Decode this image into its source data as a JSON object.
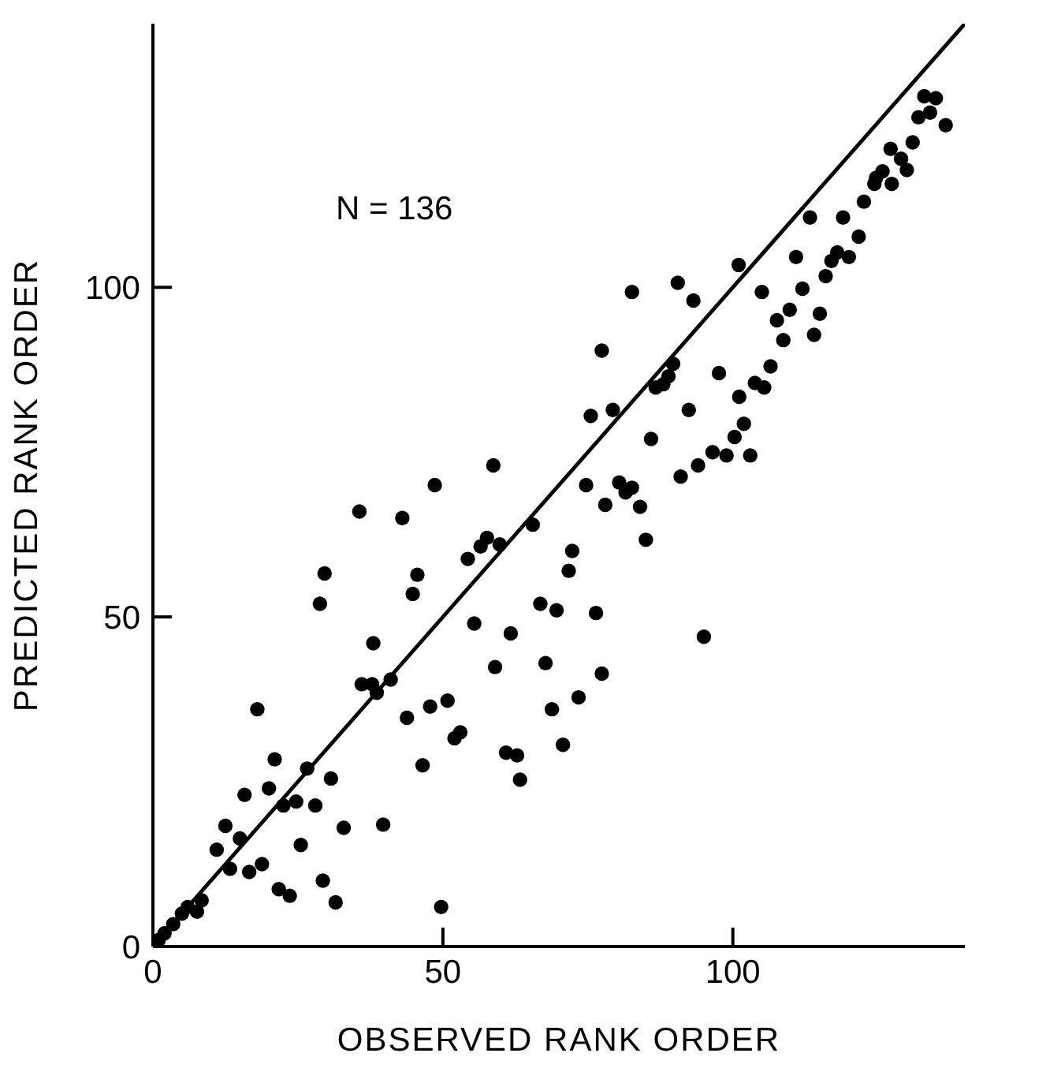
{
  "chart_data": {
    "type": "scatter",
    "xlabel": "OBSERVED RANK ORDER",
    "ylabel": "PREDICTED RANK ORDER",
    "annotations": [
      "N = 136"
    ],
    "xlim": [
      0,
      140
    ],
    "ylim": [
      0,
      140
    ],
    "xticks": [
      0,
      50,
      100
    ],
    "yticks": [
      0,
      50,
      100
    ],
    "grid": false,
    "series": [
      {
        "marker": "circle",
        "color": "#000000",
        "x": [
          1,
          2,
          3.5,
          5,
          6,
          7.6,
          8.4,
          11,
          12.5,
          13.3,
          15,
          15.8,
          16.6,
          18,
          18.8,
          20,
          21,
          21.7,
          22.5,
          23.6,
          24.7,
          25.5,
          26.6,
          28,
          28.8,
          29.6,
          29.3,
          30.7,
          31.5,
          32.9,
          35.6,
          36,
          37.8,
          38,
          38.6,
          39.7,
          41,
          43,
          43.8,
          44.8,
          45.6,
          46.5,
          47.8,
          48.6,
          49.7,
          50.8,
          52,
          53,
          54.3,
          55.4,
          56.5,
          57.6,
          58.7,
          59,
          59.8,
          60.9,
          61.7,
          62.8,
          63.3,
          65.5,
          66.8,
          67.7,
          68.8,
          69.6,
          70.7,
          71.7,
          72.3,
          73.4,
          74.7,
          75.5,
          76.4,
          77.4,
          77.4,
          78,
          79.3,
          80.4,
          81.5,
          82.6,
          82.6,
          84,
          85,
          85.9,
          86.7,
          88,
          88.9,
          89.7,
          90.5,
          91,
          92.4,
          93.2,
          94,
          95,
          96.5,
          97.6,
          98.9,
          100.3,
          101.1,
          101.9,
          103,
          103.8,
          105.4,
          101,
          105,
          106.5,
          107.6,
          108.7,
          109.8,
          110.9,
          112,
          113.3,
          114,
          115,
          116,
          117,
          118,
          119,
          120,
          121.7,
          122.6,
          124.4,
          124.7,
          125.8,
          127.2,
          127.4,
          129,
          130,
          131,
          132,
          133,
          134,
          135,
          136.7
        ],
        "values": [
          1,
          2,
          3.4,
          5,
          6,
          5.3,
          7,
          14.7,
          18.3,
          11.8,
          16.4,
          23,
          11.3,
          36,
          12.5,
          24,
          28.4,
          8.7,
          21.4,
          7.7,
          22,
          15.4,
          27,
          21.4,
          52,
          56.6,
          10,
          25.5,
          6.7,
          18,
          66,
          39.8,
          39.8,
          46,
          38.5,
          18.5,
          40.5,
          65,
          34.7,
          53.5,
          56.4,
          27.5,
          36.4,
          70,
          6,
          37.3,
          31.6,
          32.5,
          58.8,
          49,
          60.7,
          62,
          73,
          42.4,
          61,
          29.4,
          47.5,
          29,
          25.3,
          64,
          52,
          43,
          36,
          51,
          30.6,
          57,
          60,
          37.8,
          70,
          80.5,
          50.6,
          90.4,
          41.4,
          67,
          81.4,
          70.4,
          68.9,
          99.3,
          69.6,
          66.7,
          61.7,
          77,
          84.8,
          85.3,
          86.5,
          88.4,
          100.7,
          71.3,
          81.4,
          98,
          73,
          47,
          75,
          87,
          74.5,
          77.3,
          83.4,
          79.3,
          74.5,
          85.5,
          84.8,
          103.4,
          99.3,
          88,
          95,
          92,
          96.6,
          104.6,
          99.8,
          110.6,
          92.8,
          96,
          101.7,
          104,
          105.3,
          110.6,
          104.6,
          107.7,
          113,
          115.7,
          116.6,
          117.6,
          121,
          115.7,
          119.5,
          117.8,
          122,
          125.8,
          129,
          126.5,
          128.7,
          124.6
        ]
      },
      {
        "type": "line",
        "color": "#000000",
        "x": [
          0,
          140
        ],
        "values": [
          0,
          140
        ]
      }
    ]
  }
}
